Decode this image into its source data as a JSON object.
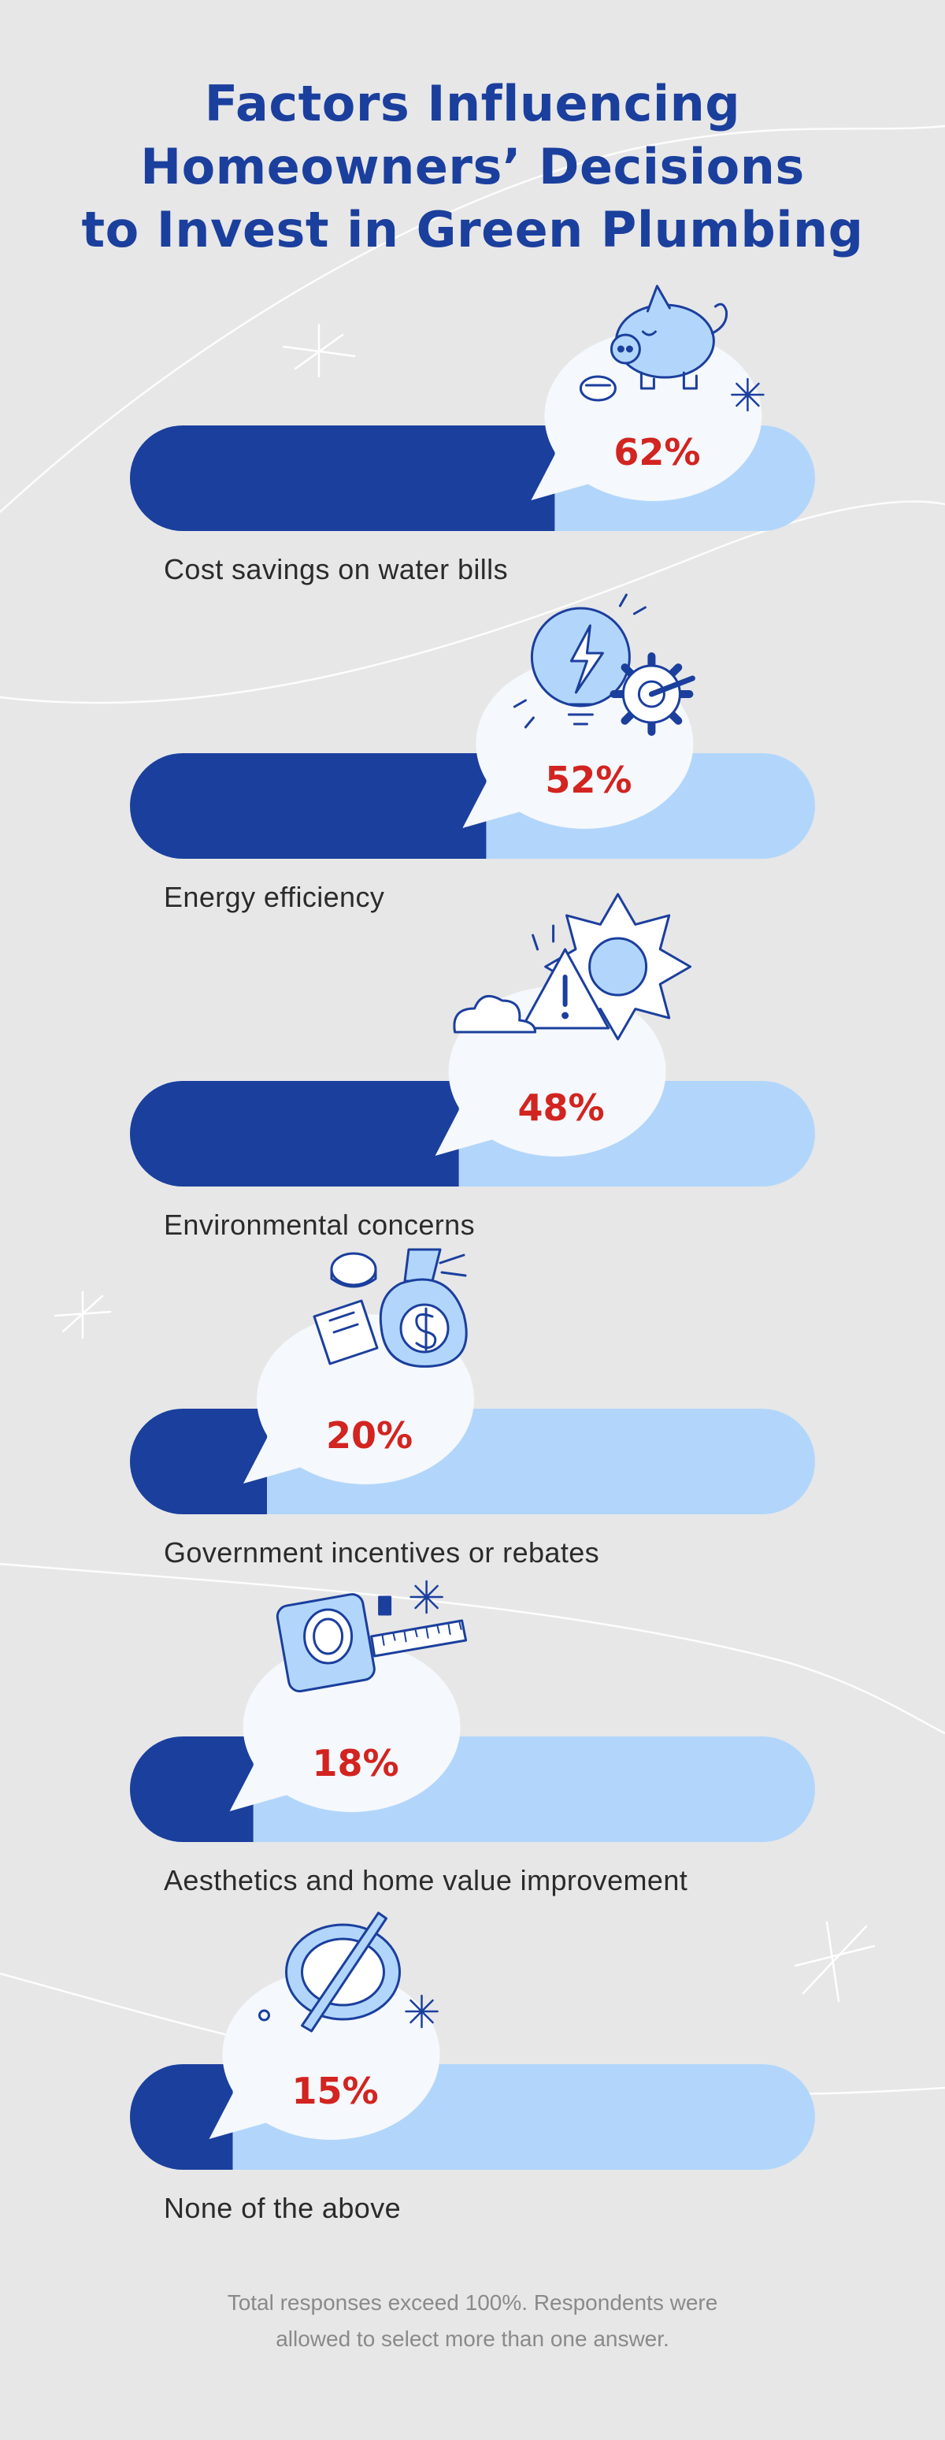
{
  "title_lines": [
    "Factors Influencing",
    "Homeowners’ Decisions",
    "to Invest in Green Plumbing"
  ],
  "footnote_lines": [
    "Total responses exceed 100%. Respondents were",
    "allowed to select more than one answer."
  ],
  "colors": {
    "background": "#e7e7e8",
    "bar_fill": "#1b3f9d",
    "bar_track": "#b2d6fb",
    "bubble": "#f5f8fc",
    "percent_text": "#d22420",
    "icon_stroke": "#1b3f9d",
    "icon_fill": "#b2d6fb"
  },
  "chart_data": {
    "type": "bar",
    "orientation": "horizontal",
    "categories": [
      "Cost savings on water bills",
      "Energy efficiency",
      "Environmental concerns",
      "Government incentives or rebates",
      "Aesthetics and home value improvement",
      "None of the above"
    ],
    "values": [
      62,
      52,
      48,
      20,
      18,
      15
    ],
    "value_labels": [
      "62%",
      "52%",
      "48%",
      "20%",
      "18%",
      "15%"
    ],
    "icons": [
      "piggy-bank-icon",
      "lightbulb-gear-icon",
      "weather-warning-icon",
      "money-bag-icon",
      "tape-measure-icon",
      "prohibited-icon"
    ],
    "xlim": [
      0,
      100
    ],
    "grid": false,
    "legend": "none"
  }
}
